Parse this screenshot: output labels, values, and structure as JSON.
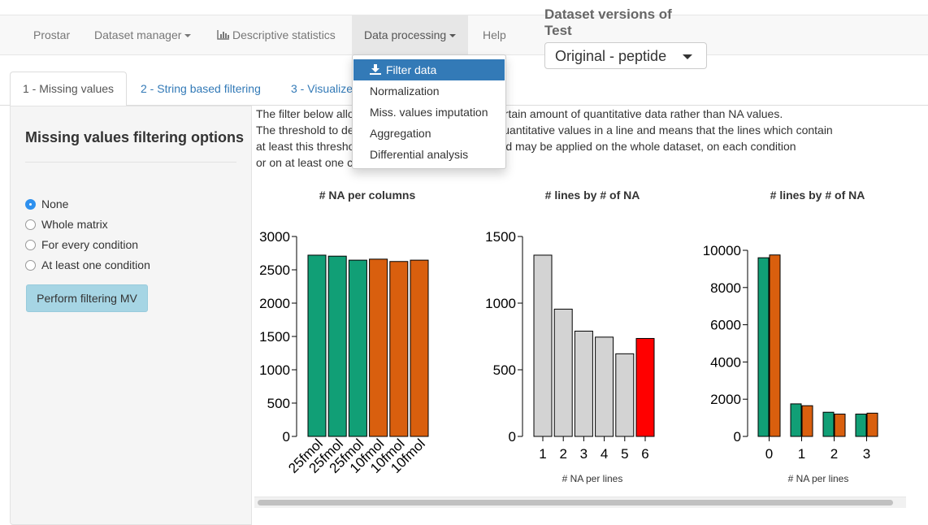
{
  "navbar": {
    "brand": "Prostar",
    "items": [
      {
        "label": "Dataset manager",
        "caret": true
      },
      {
        "label": "Descriptive statistics",
        "icon": "bar-chart-icon"
      },
      {
        "label": "Data processing",
        "caret": true
      },
      {
        "label": "Help"
      }
    ]
  },
  "version": {
    "title": "Dataset versions of Test",
    "selected": "Original - peptide"
  },
  "dropdown": {
    "items": [
      {
        "label": "Filter data",
        "icon": "download-icon",
        "active": true
      },
      {
        "label": "Normalization"
      },
      {
        "label": "Miss. values imputation"
      },
      {
        "label": "Aggregation"
      },
      {
        "label": "Differential analysis"
      }
    ]
  },
  "tabs": [
    "1 - Missing values",
    "2 - String based filtering",
    "3 - Visualize"
  ],
  "sidebar": {
    "title": "Missing values filtering options",
    "options": [
      "None",
      "Whole matrix",
      "For every condition",
      "At least one condition"
    ],
    "selected_option": "None",
    "button_label": "Perform filtering MV"
  },
  "description": {
    "lines": [
      "The filter below allo                                   ain a certain amount of quantitative data rather than NA values.",
      "The threshold to de                                     er of quantitative values in a line and means that the lines which contain",
      "at least this thresho                                   threshold may be applied on the whole dataset, on each condition",
      "or on at least one c"
    ]
  },
  "colors": {
    "green": "#119f76",
    "orange": "#d95f0e",
    "grey": "#d3d3d3",
    "red": "#ff0000",
    "accent": "#337ab7"
  },
  "chart_data": [
    {
      "type": "bar",
      "title": "# NA per columns",
      "categories": [
        "25fmol",
        "25fmol",
        "25fmol",
        "10fmol",
        "10fmol",
        "10fmol"
      ],
      "values": [
        2720,
        2705,
        2645,
        2660,
        2625,
        2645
      ],
      "bar_colors": [
        "green",
        "green",
        "green",
        "orange",
        "orange",
        "orange"
      ],
      "ylim": [
        0,
        3000
      ],
      "yticks": [
        0,
        500,
        1000,
        1500,
        2000,
        2500,
        3000
      ],
      "xlabel": "",
      "ylabel": ""
    },
    {
      "type": "bar",
      "title": "# lines by # of NA",
      "categories": [
        "1",
        "2",
        "3",
        "4",
        "5",
        "6"
      ],
      "values": [
        1360,
        955,
        790,
        745,
        620,
        735
      ],
      "bar_colors": [
        "grey",
        "grey",
        "grey",
        "grey",
        "grey",
        "red"
      ],
      "ylim": [
        0,
        1500
      ],
      "yticks": [
        0,
        500,
        1000,
        1500
      ],
      "xlabel": "# NA per lines",
      "ylabel": ""
    },
    {
      "type": "bar",
      "title": "# lines by # of NA",
      "categories": [
        "0",
        "1",
        "2",
        "3"
      ],
      "series": [
        {
          "values": [
            9600,
            1750,
            1300,
            1200
          ],
          "color": "green"
        },
        {
          "values": [
            9750,
            1650,
            1200,
            1250
          ],
          "color": "orange"
        }
      ],
      "ylim": [
        0,
        10000
      ],
      "yticks": [
        0,
        2000,
        4000,
        6000,
        8000,
        10000
      ],
      "xlabel": "# NA per lines",
      "ylabel": ""
    }
  ]
}
